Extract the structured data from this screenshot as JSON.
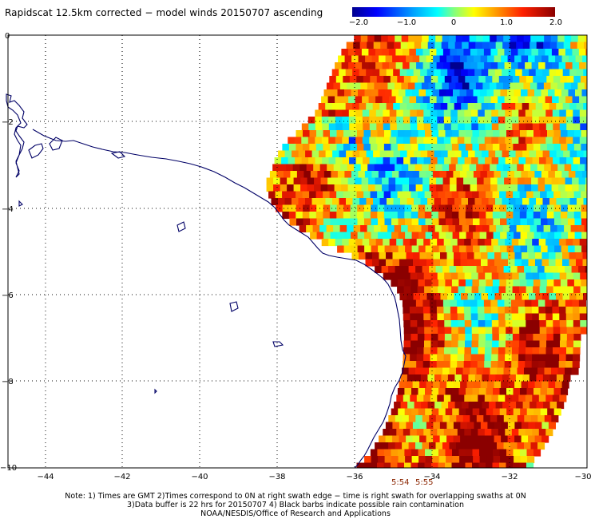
{
  "title": "Rapidscat 12.5km corrected − model winds 20150707 ascending",
  "colorbar": {
    "ticks": [
      "−2.0",
      "−1.0",
      "0",
      "1.0",
      "2.0"
    ],
    "range": [
      -2.0,
      2.0
    ]
  },
  "map": {
    "x_ticks": [
      "−44",
      "−42",
      "−40",
      "−38",
      "−36",
      "−34",
      "−32",
      "−30"
    ],
    "y_ticks": [
      "0",
      "−2",
      "−4",
      "−6",
      "−8",
      "−10"
    ],
    "x_range": [
      -45,
      -30
    ],
    "y_range": [
      -10,
      0
    ],
    "coastline_color": "#000066",
    "grid": "dotted"
  },
  "times": [
    "5:54",
    "5:55"
  ],
  "notes": [
    "Note: 1) Times are GMT 2)Times correspond to 0N at right swath edge − time is right swath for overlapping swaths at 0N",
    "3)Data buffer is 22 hrs for 20150707 4) Black barbs indicate possible rain contamination",
    "NOAA/NESDIS/Office of Research and Applications"
  ]
}
